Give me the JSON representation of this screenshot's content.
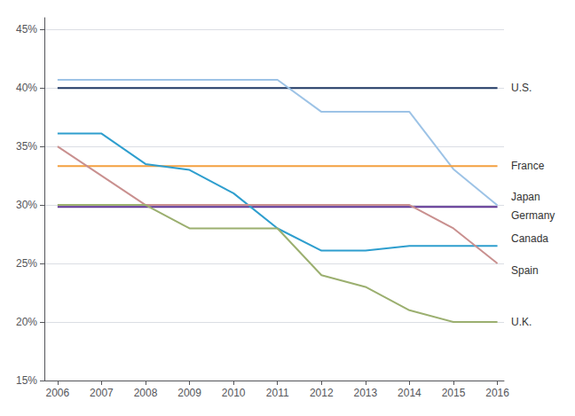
{
  "chart_data": {
    "type": "line",
    "x": [
      2006,
      2007,
      2008,
      2009,
      2010,
      2011,
      2012,
      2013,
      2014,
      2015,
      2016
    ],
    "series": [
      {
        "name": "U.S.",
        "color": "#1f3864",
        "values": [
          40,
          40,
          40,
          40,
          40,
          40,
          40,
          40,
          40,
          40,
          40
        ]
      },
      {
        "name": "Japan",
        "color": "#9dc3e6",
        "values": [
          40.69,
          40.69,
          40.69,
          40.69,
          40.69,
          40.69,
          37.96,
          37.96,
          37.96,
          33.06,
          29.97
        ]
      },
      {
        "name": "France",
        "color": "#f4a040",
        "values": [
          33.33,
          33.33,
          33.33,
          33.33,
          33.33,
          33.33,
          33.33,
          33.33,
          33.33,
          33.33,
          33.33
        ]
      },
      {
        "name": "Germany",
        "color": "#5c3292",
        "values": [
          29.83,
          29.83,
          29.83,
          29.83,
          29.83,
          29.83,
          29.83,
          29.83,
          29.83,
          29.83,
          29.83
        ]
      },
      {
        "name": "Canada",
        "color": "#2e9ece",
        "values": [
          36.1,
          36.1,
          33.5,
          33.0,
          31.0,
          28.0,
          26.1,
          26.1,
          26.5,
          26.5,
          26.5
        ]
      },
      {
        "name": "Spain",
        "color": "#c9908f",
        "values": [
          35.0,
          32.5,
          30.0,
          30.0,
          30.0,
          30.0,
          30.0,
          30.0,
          30.0,
          28.0,
          25.0
        ]
      },
      {
        "name": "U.K.",
        "color": "#9baf6f",
        "values": [
          30.0,
          30.0,
          30.0,
          28.0,
          28.0,
          28.0,
          24.0,
          23.0,
          21.0,
          20.0,
          20.0
        ]
      }
    ],
    "annotations": [
      {
        "text": "U.S.",
        "y": 40.0
      },
      {
        "text": "France",
        "y": 33.33
      },
      {
        "text": "Japan",
        "y": 30.67
      },
      {
        "text": "Germany",
        "y": 29.13
      },
      {
        "text": "Canada",
        "y": 27.1
      },
      {
        "text": "Spain",
        "y": 24.4
      },
      {
        "text": "U.K.",
        "y": 20.0
      }
    ],
    "xlim": [
      2005.7,
      2016.15
    ],
    "xticks": [
      2006,
      2007,
      2008,
      2009,
      2010,
      2011,
      2012,
      2013,
      2014,
      2015,
      2016
    ],
    "ylim": [
      15,
      46
    ],
    "yticks": [
      {
        "value": 15,
        "label": "15%"
      },
      {
        "value": 20,
        "label": "20%"
      },
      {
        "value": 25,
        "label": "25%"
      },
      {
        "value": 30,
        "label": "30%"
      },
      {
        "value": 35,
        "label": "35%"
      },
      {
        "value": 40,
        "label": "40%"
      },
      {
        "value": 45,
        "label": "45%"
      }
    ],
    "grid": true
  }
}
